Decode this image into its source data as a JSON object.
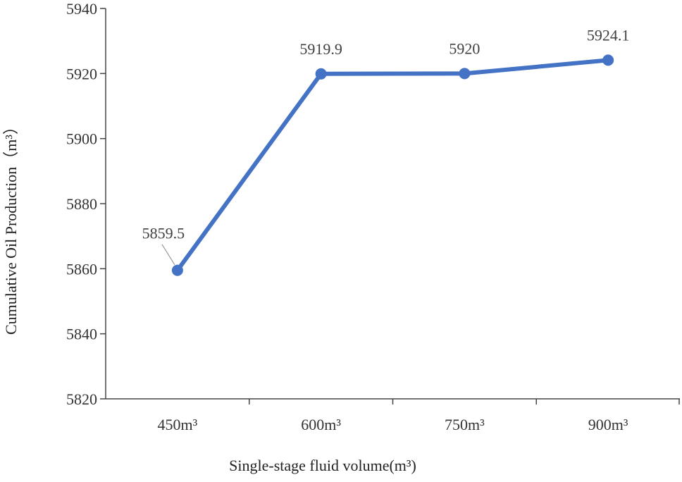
{
  "chart_data": {
    "type": "line",
    "title": "",
    "xlabel": "Single-stage fluid volume(m³)",
    "ylabel": "Cumulative Oil Production（m³）",
    "categories": [
      "450m³",
      "600m³",
      "750m³",
      "900m³"
    ],
    "series": [
      {
        "name": "Cumulative Oil Production",
        "values": [
          5859.5,
          5919.9,
          5920,
          5924.1
        ],
        "labels": [
          "5859.5",
          "5919.9",
          "5920",
          "5924.1"
        ]
      }
    ],
    "ylim": [
      5820,
      5940
    ],
    "yticks": [
      "5820",
      "5840",
      "5860",
      "5880",
      "5900",
      "5920",
      "5940"
    ],
    "grid": false,
    "legend": "none"
  },
  "colors": {
    "line": "#4472C4",
    "axis": "#444444",
    "text": "#333333"
  }
}
